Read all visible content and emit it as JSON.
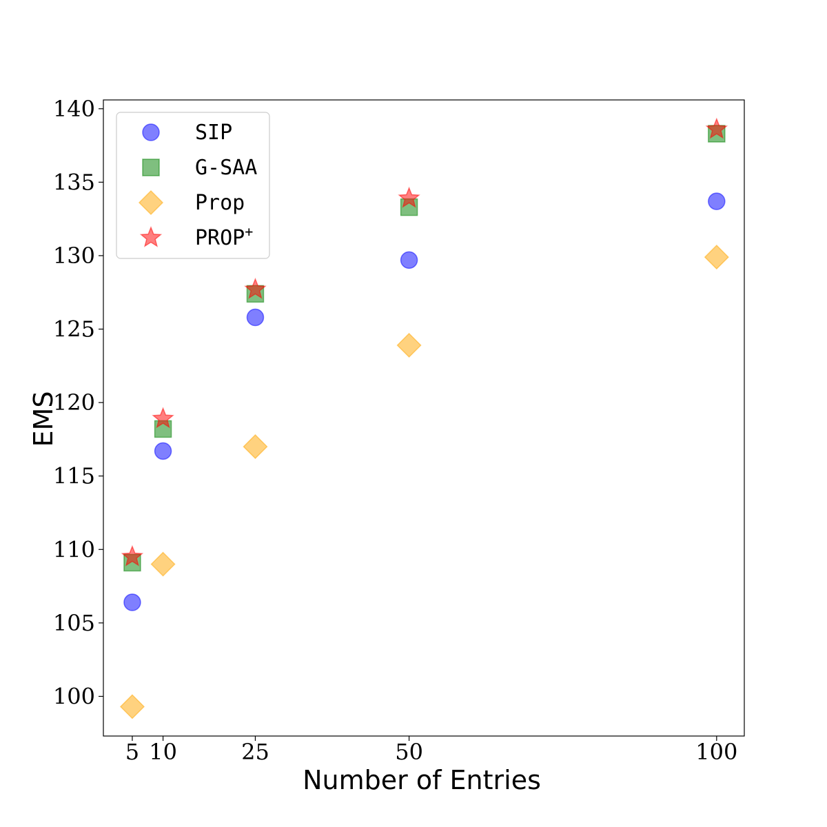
{
  "chart_data": {
    "type": "scatter",
    "xlabel": "Number of Entries",
    "ylabel": "EMS",
    "x_ticks": [
      5,
      10,
      25,
      50,
      100
    ],
    "y_ticks": [
      100,
      105,
      110,
      115,
      120,
      125,
      130,
      135,
      140
    ],
    "xlim": [
      0.3,
      104.5
    ],
    "ylim": [
      97.3,
      140.6
    ],
    "legend_position": "upper-left",
    "grid": false,
    "series": [
      {
        "name": "SIP",
        "marker": "circle",
        "color": "#0000ff",
        "x": [
          5,
          10,
          25,
          50,
          100
        ],
        "y": [
          106.4,
          116.7,
          125.8,
          129.7,
          133.7
        ]
      },
      {
        "name": "G-SAA",
        "marker": "square",
        "color": "#008000",
        "x": [
          5,
          10,
          25,
          50,
          100
        ],
        "y": [
          109.1,
          118.2,
          127.4,
          133.3,
          138.3
        ]
      },
      {
        "name": "Prop",
        "marker": "diamond",
        "color": "#ffa500",
        "x": [
          5,
          10,
          25,
          50,
          100
        ],
        "y": [
          99.3,
          109.0,
          117.0,
          123.9,
          129.9
        ]
      },
      {
        "name": "PROP",
        "name_sup": "+",
        "marker": "star",
        "color": "#ff0000",
        "x": [
          5,
          10,
          25,
          50,
          100
        ],
        "y": [
          109.5,
          118.9,
          127.7,
          133.9,
          138.6
        ]
      }
    ]
  }
}
